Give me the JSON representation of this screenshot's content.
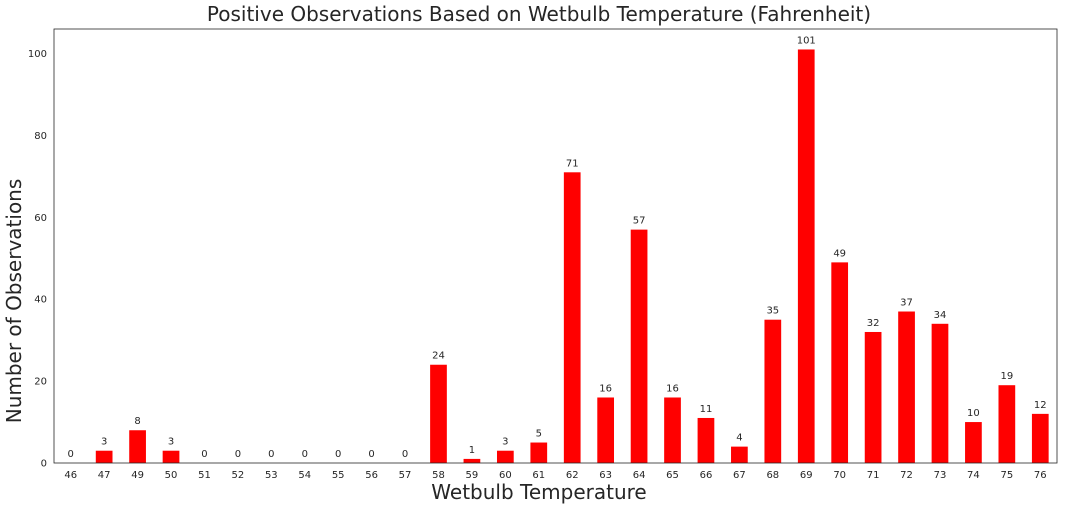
{
  "chart_data": {
    "type": "bar",
    "title": "Positive Observations Based on Wetbulb Temperature (Fahrenheit)",
    "xlabel": "Wetbulb Temperature",
    "ylabel": "Number of Observations",
    "categories": [
      "46",
      "47",
      "49",
      "50",
      "51",
      "52",
      "53",
      "54",
      "55",
      "56",
      "57",
      "58",
      "59",
      "60",
      "61",
      "62",
      "63",
      "64",
      "65",
      "66",
      "67",
      "68",
      "69",
      "70",
      "71",
      "72",
      "73",
      "74",
      "75",
      "76"
    ],
    "values": [
      0,
      3,
      8,
      3,
      0,
      0,
      0,
      0,
      0,
      0,
      0,
      24,
      1,
      3,
      5,
      71,
      16,
      57,
      16,
      11,
      4,
      35,
      101,
      49,
      32,
      37,
      34,
      10,
      19,
      12
    ],
    "ylim": [
      0,
      106
    ],
    "yticks": [
      0,
      20,
      40,
      60,
      80,
      100
    ],
    "bar_color": "#ff0000",
    "grid": false,
    "legend": "none"
  }
}
